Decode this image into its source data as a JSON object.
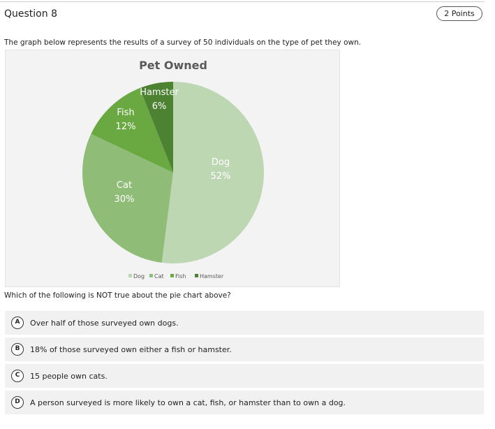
{
  "question": {
    "title": "Question 8",
    "points": "2 Points",
    "text": "The graph below represents the results of a survey of 50 individuals on the type of pet they own.",
    "prompt": "Which of the following is NOT true about the pie chart above?"
  },
  "chart_data": {
    "type": "pie",
    "title": "Pet Owned",
    "categories": [
      "Dog",
      "Cat",
      "Fish",
      "Hamster"
    ],
    "values": [
      52,
      30,
      12,
      6
    ],
    "value_labels": [
      "52%",
      "30%",
      "12%",
      "6%"
    ],
    "colors": [
      "#bdd7b2",
      "#8fbc76",
      "#6aa842",
      "#4e8233"
    ],
    "legend_position": "bottom"
  },
  "options": [
    {
      "letter": "A",
      "text": "Over half of those surveyed own dogs."
    },
    {
      "letter": "B",
      "text": "18% of those surveyed own either a fish or hamster."
    },
    {
      "letter": "C",
      "text": "15 people own cats."
    },
    {
      "letter": "D",
      "text": "A person surveyed is more likely to own a cat, fish, or hamster than to own a dog."
    }
  ]
}
